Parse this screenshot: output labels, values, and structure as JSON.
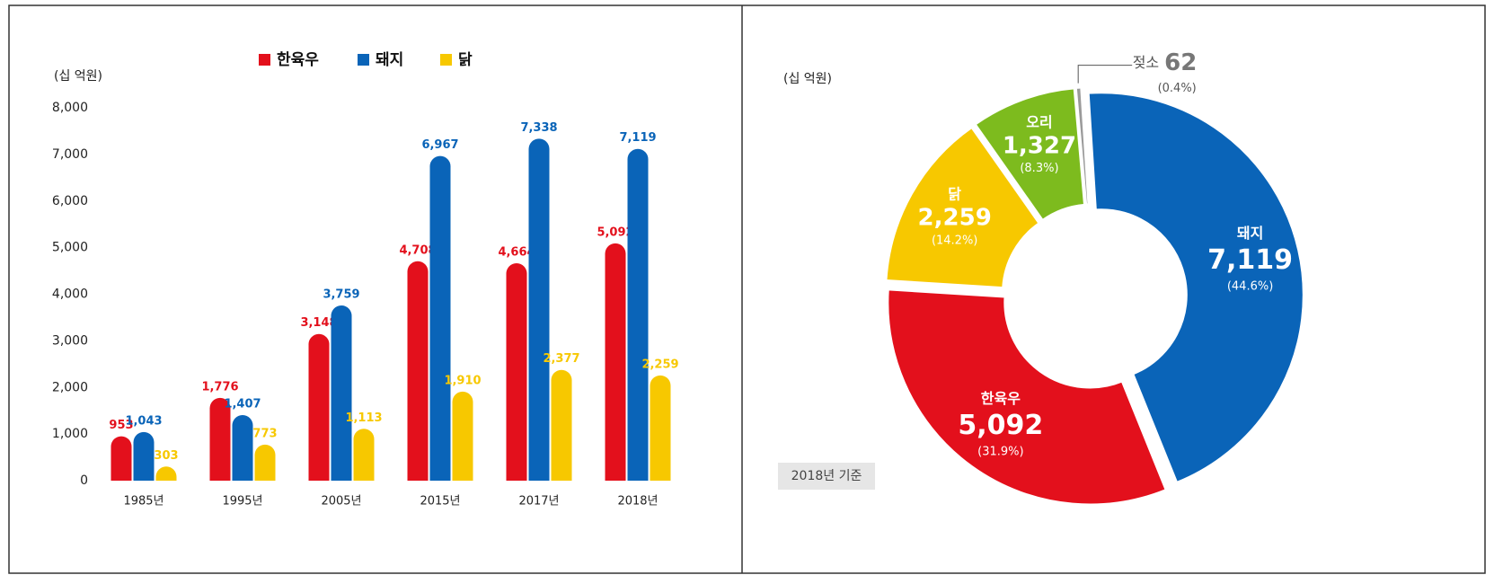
{
  "chart_data": [
    {
      "type": "bar",
      "axis_label": "(십 억원)",
      "categories": [
        "1985년",
        "1995년",
        "2005년",
        "2015년",
        "2017년",
        "2018년"
      ],
      "series": [
        {
          "name": "한육우",
          "color": "#e3101c",
          "values": [
            953,
            1776,
            3148,
            4708,
            4664,
            5092
          ],
          "value_labels": [
            "953",
            "1,776",
            "3,148",
            "4,708",
            "4,664",
            "5,092"
          ]
        },
        {
          "name": "돼지",
          "color": "#0a64b8",
          "values": [
            1043,
            1407,
            3759,
            6967,
            7338,
            7119
          ],
          "value_labels": [
            "1,043",
            "1,407",
            "3,759",
            "6,967",
            "7,338",
            "7,119"
          ]
        },
        {
          "name": "닭",
          "color": "#f7c800",
          "values": [
            303,
            773,
            1113,
            1910,
            2377,
            2259
          ],
          "value_labels": [
            "303",
            "773",
            "1,113",
            "1,910",
            "2,377",
            "2,259"
          ]
        }
      ],
      "ylim": [
        0,
        8000
      ],
      "yticks": [
        0,
        {
          "value": 1000,
          "label": "1,000"
        },
        {
          "value": 2000,
          "label": "2,000"
        },
        {
          "value": 3000,
          "label": "3,000"
        },
        {
          "value": 4000,
          "label": "4,000"
        },
        {
          "value": 5000,
          "label": "5,000"
        },
        {
          "value": 6000,
          "label": "6,000"
        },
        {
          "value": 7000,
          "label": "7,000"
        },
        {
          "value": 8000,
          "label": "8,000"
        }
      ]
    },
    {
      "type": "donut",
      "axis_label": "(십 억원)",
      "note": "2018년 기준",
      "categories": [
        "젖소",
        "돼지",
        "한육우",
        "닭",
        "오리"
      ],
      "values": [
        62,
        7119,
        5092,
        2259,
        1327
      ],
      "value_labels": [
        "62",
        "7,119",
        "5,092",
        "2,259",
        "1,327"
      ],
      "percent_labels": [
        "(0.4%)",
        "(44.6%)",
        "(31.9%)",
        "(14.2%)",
        "(8.3%)"
      ],
      "colors": [
        "#9a9a9a",
        "#0a64b8",
        "#e3101c",
        "#f7c800",
        "#7dbb1e"
      ]
    }
  ]
}
